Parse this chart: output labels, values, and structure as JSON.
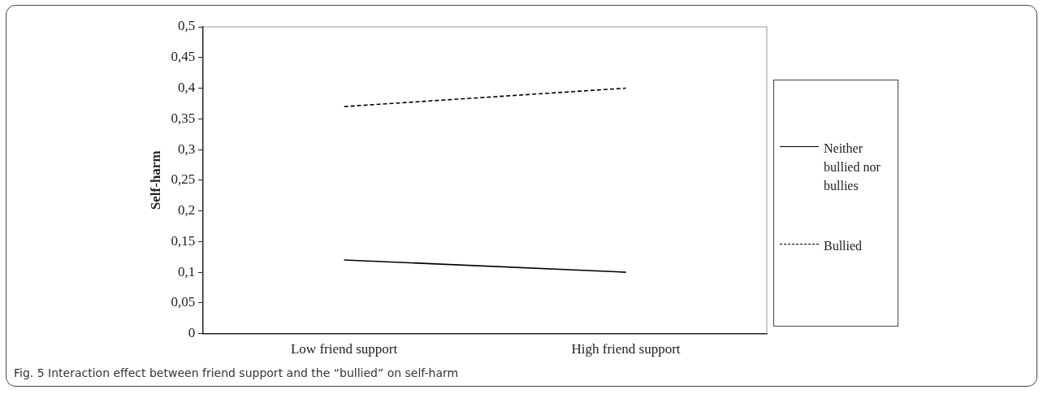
{
  "chart_data": {
    "type": "line",
    "ylabel": "Self-harm",
    "categories": [
      "Low friend support",
      "High friend support"
    ],
    "series": [
      {
        "name": "Neither bullied nor bullies",
        "color": "#000000",
        "values": [
          0.12,
          0.1
        ],
        "line_style": "solid"
      },
      {
        "name": "Bullied",
        "color": "#000000",
        "values": [
          0.37,
          0.4
        ],
        "line_style": "dashed"
      }
    ],
    "ylim": [
      0,
      0.5
    ],
    "yticks": [
      0,
      {
        "value": 0.05,
        "label": "0,05"
      },
      {
        "value": 0.1,
        "label": "0,1"
      },
      {
        "value": 0.15,
        "label": "0,15"
      },
      {
        "value": 0.2,
        "label": "0,2"
      },
      {
        "value": 0.25,
        "label": "0,25"
      },
      {
        "value": 0.3,
        "label": "0,3"
      },
      {
        "value": 0.35,
        "label": "0,35"
      },
      {
        "value": 0.4,
        "label": "0,4"
      },
      {
        "value": 0.45,
        "label": "0,45"
      },
      {
        "value": 0.5,
        "label": "0,5"
      }
    ],
    "grid": false,
    "legend": "right",
    "marker": "none",
    "annotations": [
      "Fig. 5 Interaction effect between friend support and the “bullied” on self-harm"
    ]
  }
}
